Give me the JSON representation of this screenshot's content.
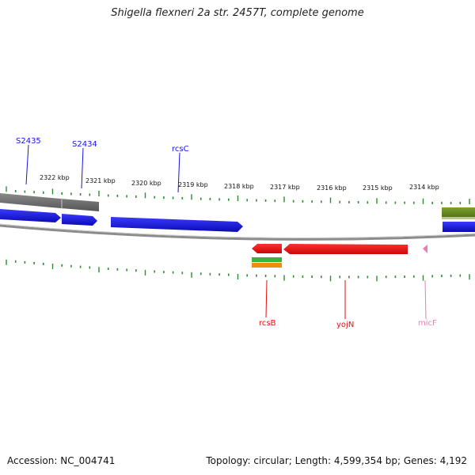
{
  "title": "Shigella flexneri 2a str. 2457T, complete genome",
  "footer": {
    "accession": "Accession: NC_004741",
    "summary": "Topology: circular; Length: 4,599,354 bp; Genes: 4,192"
  },
  "scale": {
    "labels": [
      "2322 kbp",
      "2321 kbp",
      "2320 kbp",
      "2319 kbp",
      "2318 kbp",
      "2317 kbp",
      "2316 kbp",
      "2315 kbp",
      "2314 kbp"
    ],
    "tick_color": "#2e8b2e"
  },
  "genes": [
    {
      "name": "S2435",
      "strand": "forward",
      "color": "#1414e6"
    },
    {
      "name": "S2434",
      "strand": "forward",
      "color": "#1414e6"
    },
    {
      "name": "rcsC",
      "strand": "forward",
      "color": "#1414e6"
    },
    {
      "name": "rcsB",
      "strand": "reverse",
      "color": "#e60f0f"
    },
    {
      "name": "yojN",
      "strand": "reverse",
      "color": "#e60f0f"
    },
    {
      "name": "micF",
      "strand": "reverse",
      "color": "#f07ab4"
    }
  ],
  "colors": {
    "forward_gene": "#1414e6",
    "reverse_gene": "#e60f0f",
    "rna": "#f07ab4",
    "backbone": "#8c8c8c",
    "feature_gray": "#6e6e6e",
    "feature_olive": "#6b8e23",
    "feature_green": "#3cb43c",
    "feature_orange": "#f08c14"
  }
}
